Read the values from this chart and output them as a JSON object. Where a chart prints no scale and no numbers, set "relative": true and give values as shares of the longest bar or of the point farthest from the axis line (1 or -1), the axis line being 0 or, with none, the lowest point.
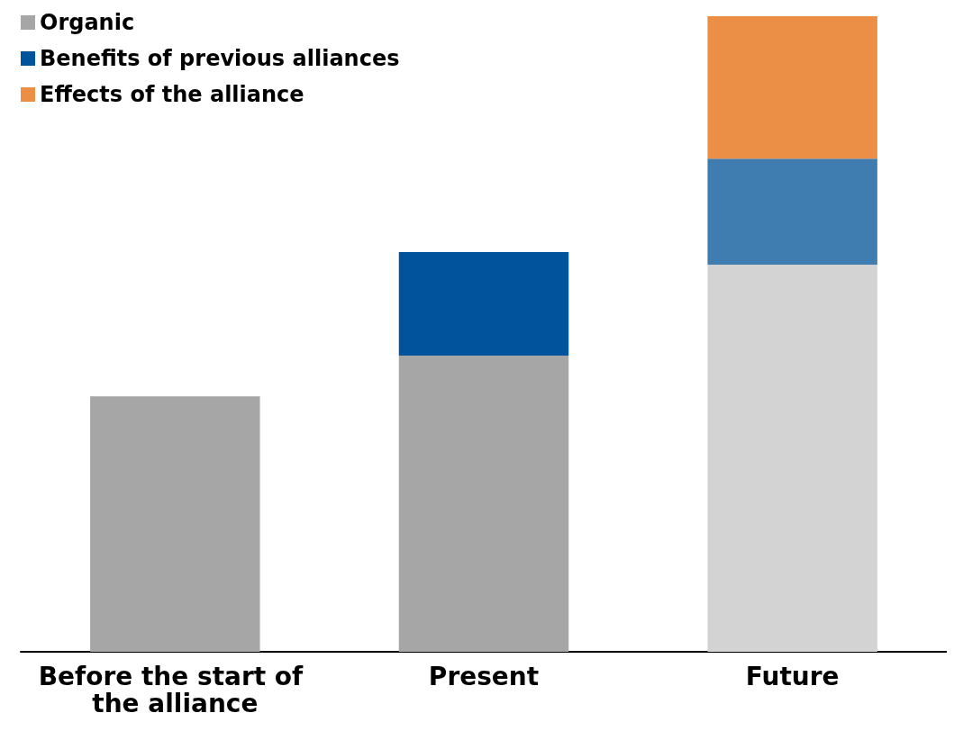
{
  "chart_data": {
    "type": "bar",
    "stacked": true,
    "relative": true,
    "legend": "top left",
    "categories": [
      "Before the start of the alliance",
      "Present",
      "Future"
    ],
    "series": [
      {
        "name": "Organic",
        "colors": [
          "#a6a6a6",
          "#a6a6a6",
          "#d3d3d3"
        ],
        "color": "#a6a6a6",
        "values": [
          0.402,
          0.466,
          0.609
        ]
      },
      {
        "name": "Benefits of previous alliances",
        "colors": [
          "#01539b",
          "#01539b",
          "#3f7db0"
        ],
        "color": "#01539b",
        "values": [
          null,
          0.163,
          0.167
        ]
      },
      {
        "name": "Effects of the alliance",
        "color": "#eb8f46",
        "values": [
          null,
          null,
          0.224
        ]
      }
    ]
  }
}
